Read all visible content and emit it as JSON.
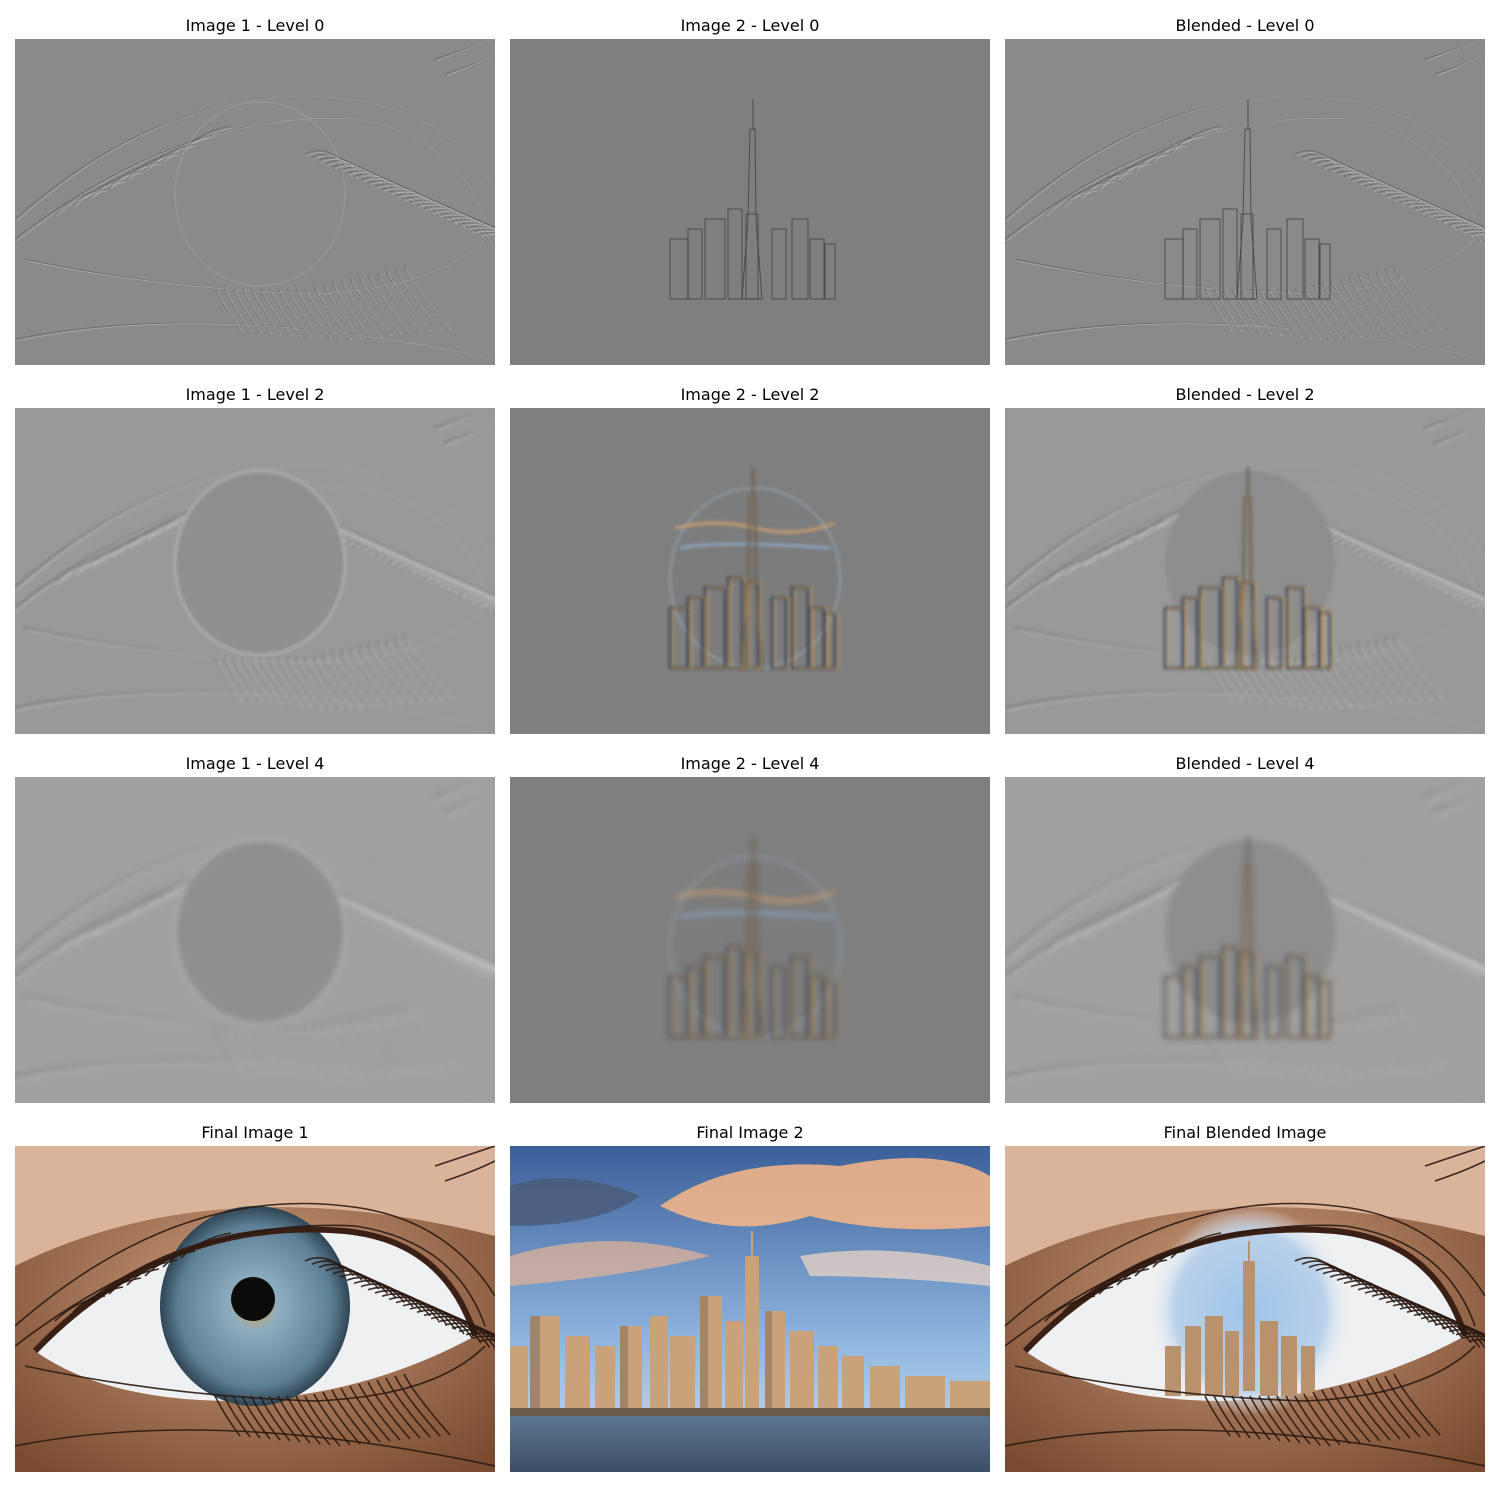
{
  "panels": [
    {
      "title": "Image 1 - Level 0",
      "kind": "eye-lap",
      "level": 0
    },
    {
      "title": "Image 2 - Level 0",
      "kind": "city-lap",
      "level": 0
    },
    {
      "title": "Blended - Level 0",
      "kind": "blend-lap",
      "level": 0
    },
    {
      "title": "Image 1 - Level 2",
      "kind": "eye-lap",
      "level": 2
    },
    {
      "title": "Image 2 - Level 2",
      "kind": "city-lap",
      "level": 2
    },
    {
      "title": "Blended - Level 2",
      "kind": "blend-lap",
      "level": 2
    },
    {
      "title": "Image 1 - Level 4",
      "kind": "eye-lap",
      "level": 4
    },
    {
      "title": "Image 2 - Level 4",
      "kind": "city-lap",
      "level": 4
    },
    {
      "title": "Blended - Level 4",
      "kind": "blend-lap",
      "level": 4
    },
    {
      "title": "Final Image 1",
      "kind": "eye-final",
      "level": null
    },
    {
      "title": "Final Image 2",
      "kind": "city-final",
      "level": null
    },
    {
      "title": "Final Blended Image",
      "kind": "blend-final",
      "level": null
    }
  ]
}
